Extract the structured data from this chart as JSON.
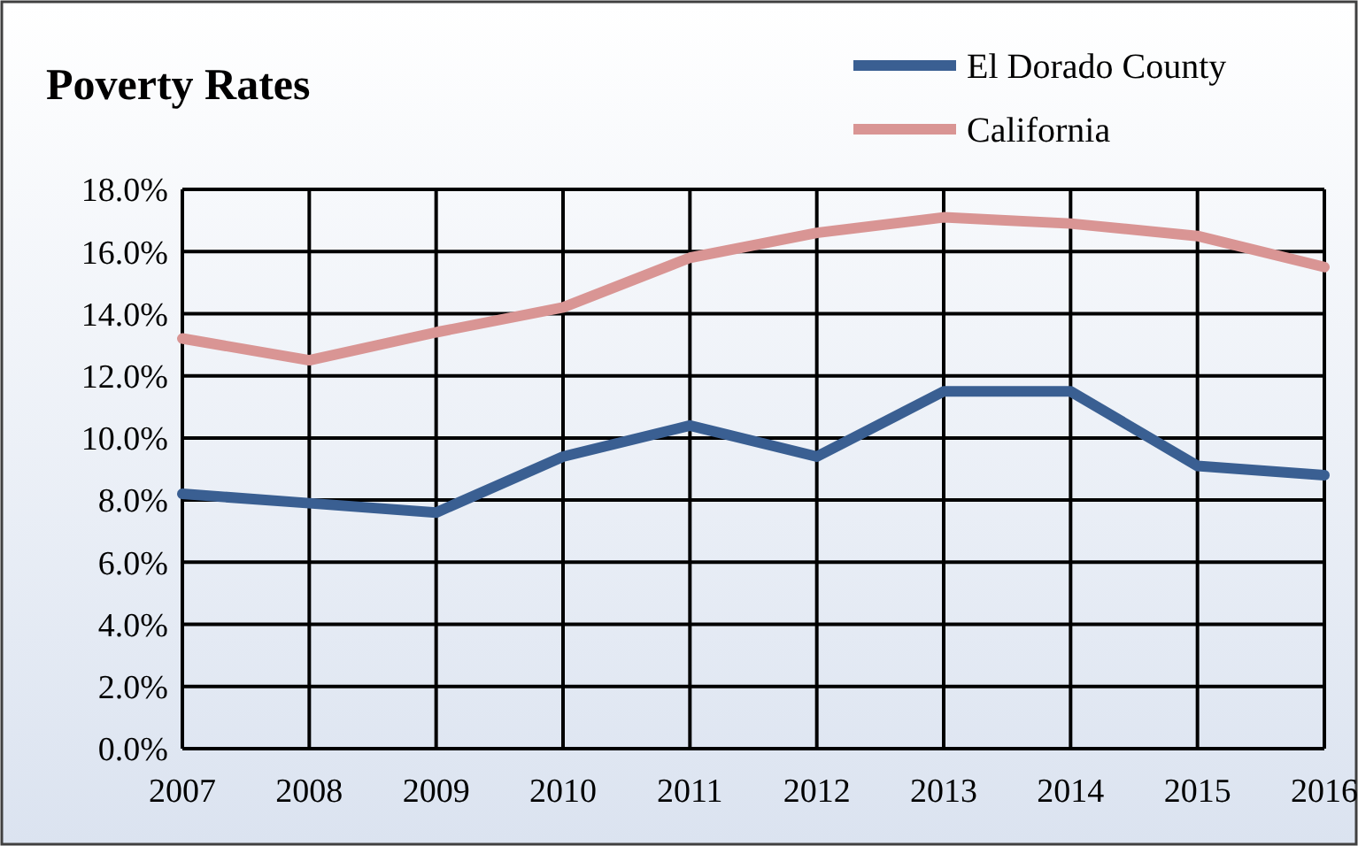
{
  "chart_data": {
    "type": "line",
    "title": "Poverty Rates",
    "x": [
      2007,
      2008,
      2009,
      2010,
      2011,
      2012,
      2013,
      2014,
      2015,
      2016
    ],
    "series": [
      {
        "name": "El Dorado County",
        "color": "#3a5f92",
        "values": [
          8.2,
          7.9,
          7.6,
          9.4,
          10.4,
          9.4,
          11.5,
          11.5,
          9.1,
          8.8
        ]
      },
      {
        "name": "California",
        "color": "#d99594",
        "values": [
          13.2,
          12.5,
          13.4,
          14.2,
          15.8,
          16.6,
          17.1,
          16.9,
          16.5,
          15.5
        ]
      }
    ],
    "xlim": [
      2007,
      2016
    ],
    "xticks": [
      2007,
      2008,
      2009,
      2010,
      2011,
      2012,
      2013,
      2014,
      2015,
      2016
    ],
    "ylim": [
      0,
      18
    ],
    "yticks": [
      {
        "value": 0,
        "label": "0.0%"
      },
      {
        "value": 2,
        "label": "2.0%"
      },
      {
        "value": 4,
        "label": "4.0%"
      },
      {
        "value": 6,
        "label": "6.0%"
      },
      {
        "value": 8,
        "label": "8.0%"
      },
      {
        "value": 10,
        "label": "10.0%"
      },
      {
        "value": 12,
        "label": "12.0%"
      },
      {
        "value": 14,
        "label": "14.0%"
      },
      {
        "value": 16,
        "label": "16.0%"
      },
      {
        "value": 18,
        "label": "18.0%"
      }
    ],
    "grid": true,
    "legend": "top right",
    "marker": "none",
    "line_style": "solid"
  }
}
